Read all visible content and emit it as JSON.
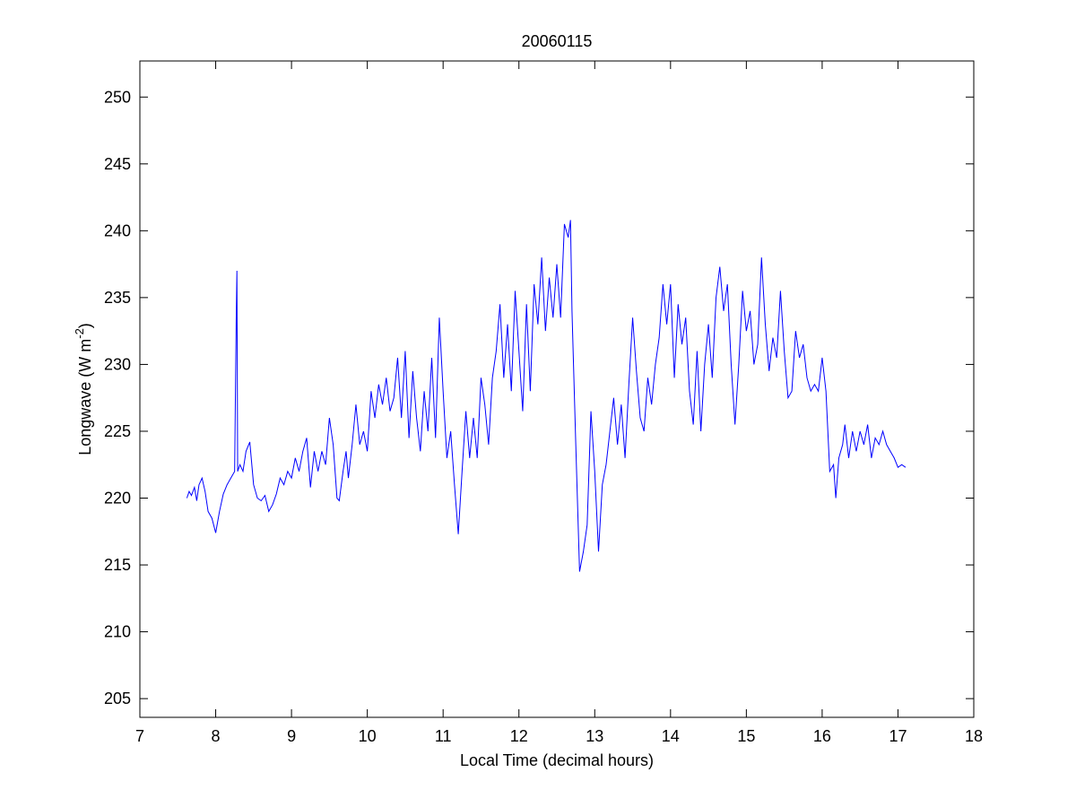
{
  "chart_data": {
    "type": "line",
    "title": "20060115",
    "xlabel": "Local Time (decimal hours)",
    "ylabel": [
      "Longwave (W m",
      "-2",
      ")"
    ],
    "xlim": [
      7,
      18
    ],
    "xticks": [
      7,
      8,
      9,
      10,
      11,
      12,
      13,
      14,
      15,
      16,
      17,
      18
    ],
    "ylim": [
      203.6,
      252.7
    ],
    "yticks": [
      205,
      210,
      215,
      220,
      225,
      230,
      235,
      240,
      245,
      250
    ],
    "grid": false,
    "series": [
      {
        "color": "#0000ff",
        "x": [
          7.62,
          7.65,
          7.68,
          7.72,
          7.75,
          7.78,
          7.82,
          7.86,
          7.9,
          7.95,
          8.0,
          8.05,
          8.1,
          8.15,
          8.2,
          8.25,
          8.27,
          8.28,
          8.29,
          8.32,
          8.36,
          8.4,
          8.45,
          8.5,
          8.55,
          8.6,
          8.65,
          8.7,
          8.75,
          8.8,
          8.85,
          8.9,
          8.95,
          9.0,
          9.05,
          9.1,
          9.15,
          9.2,
          9.25,
          9.3,
          9.35,
          9.4,
          9.45,
          9.5,
          9.55,
          9.6,
          9.63,
          9.68,
          9.72,
          9.75,
          9.8,
          9.85,
          9.9,
          9.95,
          10.0,
          10.05,
          10.1,
          10.15,
          10.2,
          10.25,
          10.3,
          10.35,
          10.4,
          10.45,
          10.5,
          10.55,
          10.6,
          10.65,
          10.7,
          10.75,
          10.8,
          10.85,
          10.9,
          10.95,
          11.0,
          11.05,
          11.1,
          11.15,
          11.2,
          11.25,
          11.3,
          11.35,
          11.4,
          11.45,
          11.5,
          11.55,
          11.6,
          11.65,
          11.7,
          11.75,
          11.8,
          11.85,
          11.9,
          11.95,
          12.0,
          12.05,
          12.1,
          12.15,
          12.2,
          12.25,
          12.3,
          12.35,
          12.4,
          12.45,
          12.5,
          12.55,
          12.6,
          12.65,
          12.68,
          12.7,
          12.75,
          12.8,
          12.85,
          12.9,
          12.95,
          13.0,
          13.05,
          13.1,
          13.15,
          13.2,
          13.25,
          13.3,
          13.35,
          13.4,
          13.45,
          13.5,
          13.55,
          13.6,
          13.65,
          13.7,
          13.75,
          13.8,
          13.85,
          13.9,
          13.95,
          14.0,
          14.05,
          14.1,
          14.15,
          14.2,
          14.25,
          14.3,
          14.35,
          14.4,
          14.45,
          14.5,
          14.55,
          14.6,
          14.65,
          14.7,
          14.75,
          14.8,
          14.85,
          14.9,
          14.95,
          15.0,
          15.05,
          15.1,
          15.15,
          15.2,
          15.25,
          15.3,
          15.35,
          15.4,
          15.45,
          15.5,
          15.55,
          15.6,
          15.65,
          15.7,
          15.75,
          15.8,
          15.85,
          15.9,
          15.95,
          16.0,
          16.05,
          16.1,
          16.15,
          16.18,
          16.22,
          16.27,
          16.3,
          16.35,
          16.4,
          16.45,
          16.5,
          16.55,
          16.6,
          16.65,
          16.7,
          16.75,
          16.8,
          16.85,
          16.9,
          16.95,
          17.0,
          17.05,
          17.1
        ],
        "values": [
          220,
          220.5,
          220.2,
          220.8,
          219.8,
          221,
          221.5,
          220.5,
          219,
          218.5,
          217.4,
          219,
          220.3,
          221,
          221.5,
          222,
          233,
          237,
          222,
          222.5,
          222,
          223.5,
          224.2,
          221,
          220,
          219.8,
          220.2,
          219,
          219.5,
          220.3,
          221.5,
          221,
          222,
          221.5,
          223,
          222,
          223.5,
          224.5,
          220.8,
          223.5,
          222,
          223.5,
          222.5,
          226,
          224,
          220,
          219.8,
          222,
          223.5,
          221.5,
          224,
          227,
          224,
          225,
          223.5,
          228,
          226,
          228.5,
          227,
          229,
          226.5,
          227.5,
          230.5,
          226,
          231,
          224.5,
          229.5,
          226,
          223.5,
          228,
          225,
          230.5,
          224.5,
          233.5,
          228,
          223,
          225,
          221,
          217.3,
          222,
          226.5,
          223,
          226,
          223,
          229,
          227,
          224,
          229,
          231,
          234.5,
          229,
          233,
          228,
          235.5,
          231,
          226.5,
          234.5,
          228,
          236,
          233,
          238,
          232.5,
          236.5,
          233.5,
          237.5,
          233.5,
          240.5,
          239.5,
          240.8,
          234,
          224,
          214.5,
          216,
          218,
          226.5,
          222,
          216,
          221,
          222.5,
          225,
          227.5,
          224,
          227,
          223,
          228.5,
          233.5,
          229.5,
          226,
          225,
          229,
          227,
          230,
          232,
          236,
          233,
          236,
          229,
          234.5,
          231.5,
          233.5,
          228,
          225.5,
          231,
          225,
          230,
          233,
          229,
          235,
          237.3,
          234,
          236,
          230,
          225.5,
          230,
          235.5,
          232.5,
          234,
          230,
          231.5,
          238,
          233,
          229.5,
          232,
          230.5,
          235.5,
          231,
          227.5,
          228,
          232.5,
          230.5,
          231.5,
          229,
          228,
          228.5,
          228,
          230.5,
          228,
          222,
          222.5,
          220,
          223,
          224,
          225.5,
          223,
          225,
          223.5,
          225,
          224,
          225.5,
          223,
          224.5,
          224,
          225,
          224,
          223.5,
          223,
          222.3,
          222.5,
          222.3
        ]
      }
    ]
  }
}
